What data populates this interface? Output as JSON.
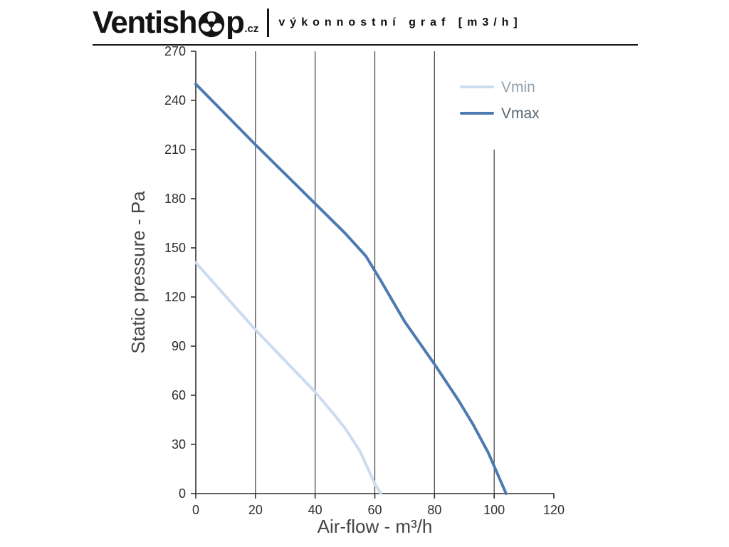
{
  "header": {
    "logo_part1": "Ventish",
    "logo_part2": "p",
    "logo_suffix": ".cz",
    "title": "výkonnostní graf [m3/h]"
  },
  "chart_data": {
    "type": "line",
    "title": "výkonnostní graf [m3/h]",
    "xlabel": "Air-flow - m³/h",
    "ylabel": "Static pressure - Pa",
    "xlim": [
      0,
      120
    ],
    "ylim": [
      0,
      270
    ],
    "x_ticks": [
      0,
      20,
      40,
      60,
      80,
      100,
      120
    ],
    "y_ticks": [
      0,
      30,
      60,
      90,
      120,
      150,
      180,
      210,
      240,
      270
    ],
    "grid": "vertical-only",
    "gridlines_x": [
      {
        "x": 20,
        "y_top": 270
      },
      {
        "x": 40,
        "y_top": 270
      },
      {
        "x": 60,
        "y_top": 270
      },
      {
        "x": 80,
        "y_top": 270
      },
      {
        "x": 100,
        "y_top": 210
      }
    ],
    "legend_position": "top-right",
    "series": [
      {
        "name": "Vmin",
        "color": "#cbdcf0",
        "label_color": "#93a0ac",
        "points": [
          [
            0,
            141
          ],
          [
            20,
            100
          ],
          [
            40,
            62
          ],
          [
            46,
            49
          ],
          [
            50,
            40
          ],
          [
            55,
            26
          ],
          [
            60,
            6
          ],
          [
            62,
            0
          ]
        ]
      },
      {
        "name": "Vmax",
        "color": "#4c7ab1",
        "label_color": "#55656f",
        "points": [
          [
            0,
            250
          ],
          [
            20,
            213
          ],
          [
            40,
            177
          ],
          [
            50,
            159
          ],
          [
            57,
            145
          ],
          [
            62,
            130
          ],
          [
            70,
            105
          ],
          [
            80,
            79
          ],
          [
            88,
            57
          ],
          [
            93,
            42
          ],
          [
            98,
            25
          ],
          [
            104,
            0
          ]
        ]
      }
    ]
  }
}
